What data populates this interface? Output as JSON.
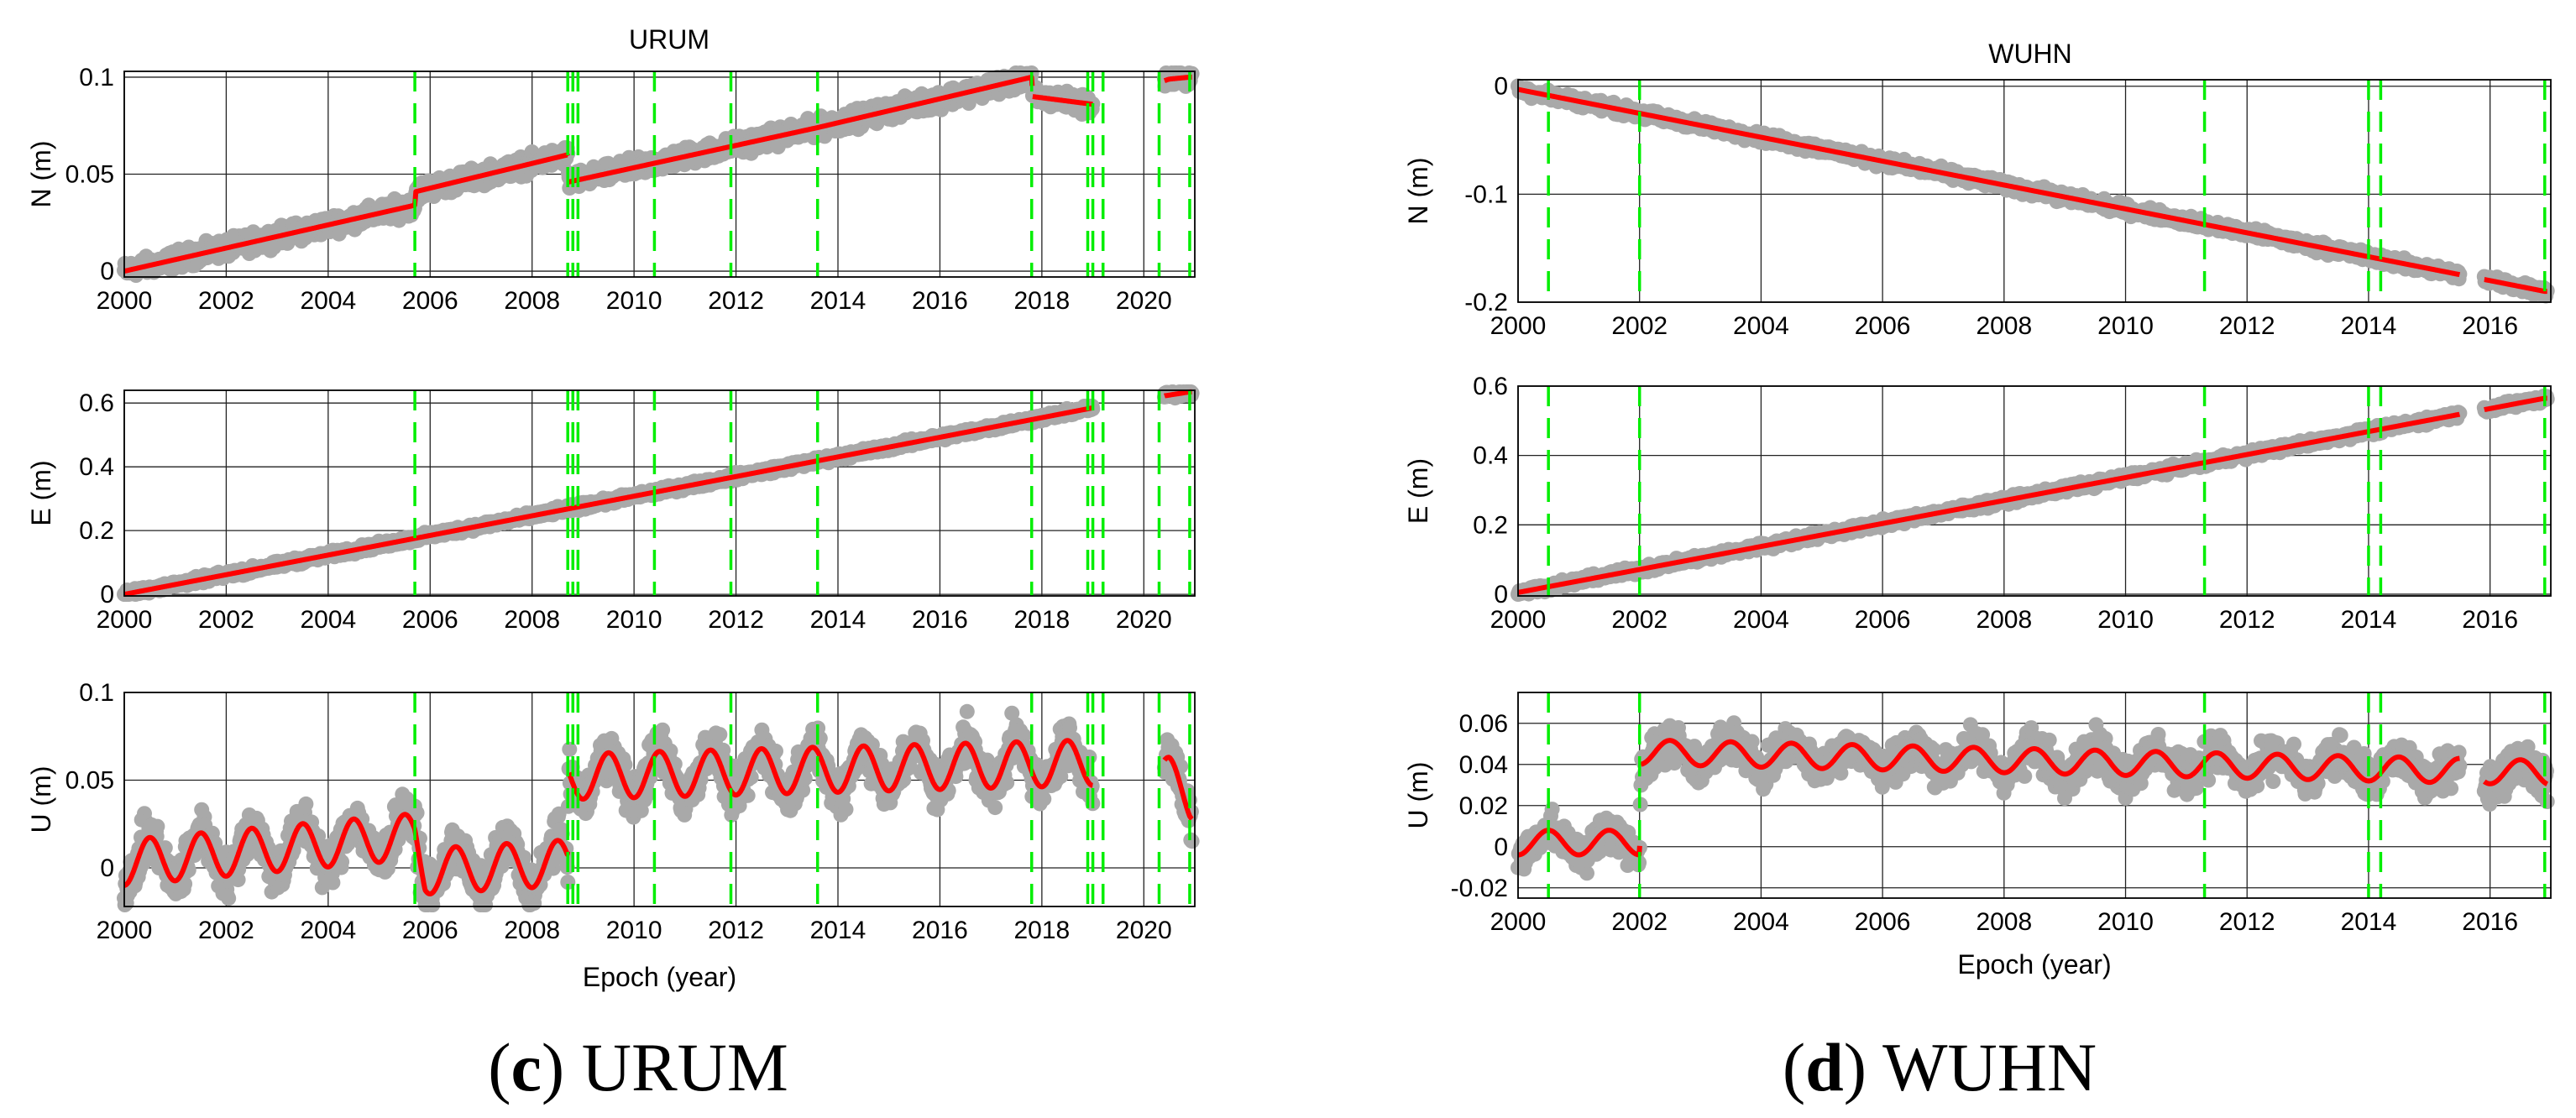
{
  "captions": {
    "left": {
      "letter": "c",
      "station": "URUM"
    },
    "right": {
      "letter": "d",
      "station": "WUHN"
    }
  },
  "colors": {
    "observed": "#a9a9a9",
    "model": "#ff0000",
    "offset": "#00ee00",
    "grid": "#000000"
  },
  "chart_data": [
    {
      "type": "scatter",
      "title": "URUM",
      "panel": "c",
      "xlabel": "Epoch (year)",
      "xlim": [
        2000,
        2021
      ],
      "xticks": [
        2000,
        2002,
        2004,
        2006,
        2008,
        2010,
        2012,
        2014,
        2016,
        2018,
        2020
      ],
      "xtick_labels": [
        "2000",
        "2002",
        "2004",
        "2006",
        "2008",
        "2010",
        "2012",
        "2014",
        "2016",
        "2018",
        "2020"
      ],
      "offsets": [
        2005.7,
        2008.7,
        2008.8,
        2008.9,
        2010.4,
        2011.9,
        2013.6,
        2017.8,
        2018.9,
        2019.0,
        2019.2,
        2020.3,
        2020.9
      ],
      "gaps": [
        [
          2019.0,
          2020.4
        ]
      ],
      "components": [
        {
          "name": "N",
          "ylabel": "N (m)",
          "ylim": [
            -0.003,
            0.103
          ],
          "yticks": [
            0,
            0.05,
            0.1
          ],
          "ytick_labels": [
            "0",
            "0.05",
            "0.1"
          ],
          "model_knots": [
            [
              2000.0,
              0.0
            ],
            [
              2005.7,
              0.034
            ],
            [
              2005.72,
              0.041
            ],
            [
              2008.7,
              0.06
            ],
            [
              2008.72,
              0.046
            ],
            [
              2013.6,
              0.074
            ],
            [
              2017.8,
              0.1
            ],
            [
              2017.82,
              0.09
            ],
            [
              2019.0,
              0.086
            ],
            [
              2020.5,
              0.099
            ],
            [
              2020.9,
              0.1
            ]
          ],
          "amplitude": 0.0,
          "noise": 0.004
        },
        {
          "name": "E",
          "ylabel": "E (m)",
          "ylim": [
            -0.005,
            0.64
          ],
          "yticks": [
            0,
            0.2,
            0.4,
            0.6
          ],
          "ytick_labels": [
            "0",
            "0.2",
            "0.4",
            "0.6"
          ],
          "model_knots": [
            [
              2000.0,
              0.0
            ],
            [
              2019.0,
              0.585
            ],
            [
              2020.5,
              0.625
            ],
            [
              2020.9,
              0.635
            ]
          ],
          "amplitude": 0.0,
          "noise": 0.009
        },
        {
          "name": "U",
          "ylabel": "U (m)",
          "ylim": [
            -0.022,
            0.1
          ],
          "yticks": [
            0,
            0.05,
            0.1
          ],
          "ytick_labels": [
            "0",
            "0.05",
            "0.1"
          ],
          "model_knots": [
            [
              2000.0,
              0.003
            ],
            [
              2005.7,
              0.018
            ],
            [
              2005.9,
              -0.002
            ],
            [
              2008.7,
              0.003
            ],
            [
              2008.72,
              0.052
            ],
            [
              2019.0,
              0.06
            ],
            [
              2020.5,
              0.05
            ],
            [
              2020.9,
              0.04
            ]
          ],
          "amplitude": 0.013,
          "noise": 0.011
        }
      ]
    },
    {
      "type": "scatter",
      "title": "WUHN",
      "panel": "d",
      "xlabel": "Epoch (year)",
      "xlim": [
        2000,
        2017
      ],
      "xticks": [
        2000,
        2002,
        2004,
        2006,
        2008,
        2010,
        2012,
        2014,
        2016
      ],
      "xtick_labels": [
        "2000",
        "2002",
        "2004",
        "2006",
        "2008",
        "2010",
        "2012",
        "2014",
        "2016"
      ],
      "offsets": [
        2000.5,
        2002.0,
        2011.3,
        2014.0,
        2014.2,
        2016.9
      ],
      "gaps": [
        [
          2015.5,
          2015.9
        ]
      ],
      "components": [
        {
          "name": "N",
          "ylabel": "N (m)",
          "ylim": [
            -0.2,
            0.006
          ],
          "yticks": [
            -0.2,
            -0.1,
            0
          ],
          "ytick_labels": [
            "-0.2",
            "-0.1",
            "0"
          ],
          "model_knots": [
            [
              2000.0,
              -0.003
            ],
            [
              2016.9,
              -0.19
            ]
          ],
          "amplitude": 0.0,
          "noise": 0.004
        },
        {
          "name": "E",
          "ylabel": "E (m)",
          "ylim": [
            -0.005,
            0.6
          ],
          "yticks": [
            0,
            0.2,
            0.4,
            0.6
          ],
          "ytick_labels": [
            "0",
            "0.2",
            "0.4",
            "0.6"
          ],
          "model_knots": [
            [
              2000.0,
              0.005
            ],
            [
              2016.9,
              0.565
            ]
          ],
          "amplitude": 0.0,
          "noise": 0.009
        },
        {
          "name": "U",
          "ylabel": "U (m)",
          "ylim": [
            -0.025,
            0.075
          ],
          "yticks": [
            -0.02,
            0,
            0.02,
            0.04,
            0.06
          ],
          "ytick_labels": [
            "-0.02",
            "0",
            "0.02",
            "0.04",
            "0.06"
          ],
          "model_knots": [
            [
              2000.0,
              0.002
            ],
            [
              2002.0,
              0.002
            ],
            [
              2002.02,
              0.046
            ],
            [
              2016.9,
              0.036
            ]
          ],
          "amplitude": 0.006,
          "noise": 0.008
        }
      ]
    }
  ]
}
